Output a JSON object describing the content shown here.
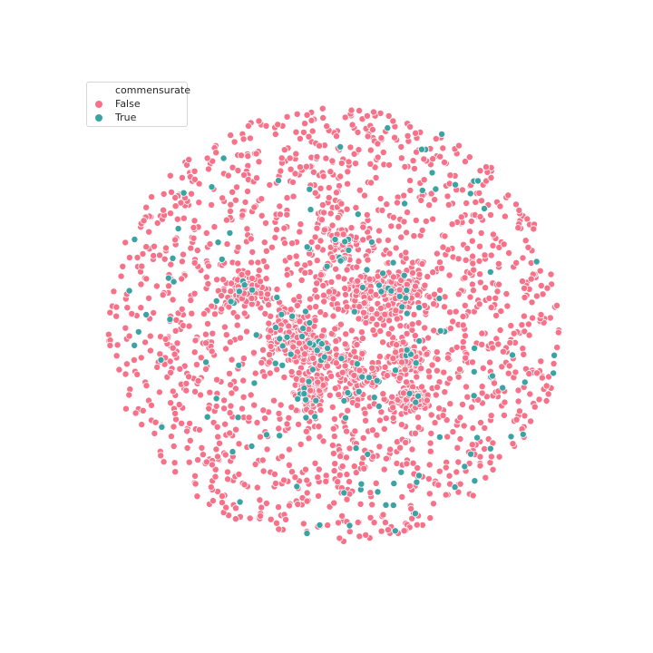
{
  "chart_data": {
    "type": "scatter",
    "title": "",
    "xlabel": "",
    "ylabel": "",
    "axes_visible": false,
    "grid": false,
    "legend_position": "top-left",
    "legend": {
      "title": "commensurate",
      "entries": [
        {
          "label": "False",
          "color": "#f77189"
        },
        {
          "label": "True",
          "color": "#3ba3a3"
        }
      ]
    },
    "approx_point_counts": {
      "False": 2600,
      "True": 180
    },
    "series": [
      {
        "name": "False",
        "color": "#f77189"
      },
      {
        "name": "True",
        "color": "#3ba3a3"
      }
    ]
  }
}
